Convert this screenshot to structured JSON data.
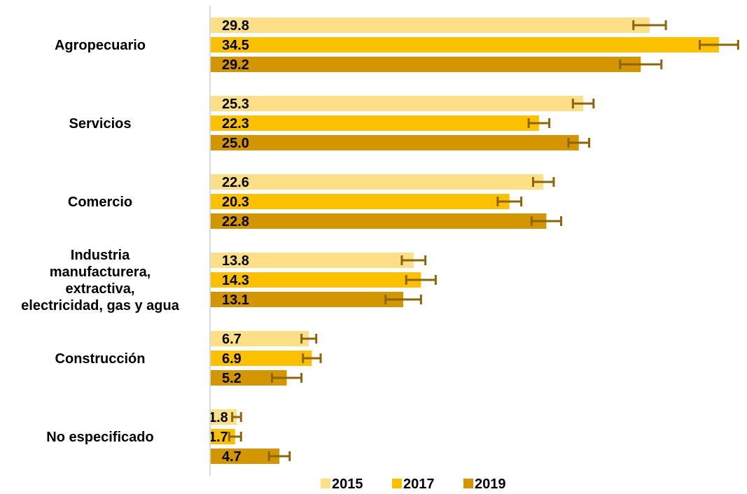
{
  "chart_data": {
    "type": "bar",
    "orientation": "horizontal",
    "categories": [
      "Agropecuario",
      "Servicios",
      "Comercio",
      "Industria manufacturera, extractiva, electricidad, gas y agua",
      "Construcción",
      "No especificado"
    ],
    "category_lines": [
      [
        "Agropecuario"
      ],
      [
        "Servicios"
      ],
      [
        "Comercio"
      ],
      [
        "Industria",
        "manufacturera,",
        "extractiva,",
        "electricidad, gas y agua"
      ],
      [
        "Construcción"
      ],
      [
        "No especificado"
      ]
    ],
    "series": [
      {
        "name": "2015",
        "color": "#FDDF87",
        "values": [
          29.8,
          25.3,
          22.6,
          13.8,
          6.7,
          1.8
        ],
        "error": [
          1.1,
          0.7,
          0.7,
          0.8,
          0.5,
          0.3
        ]
      },
      {
        "name": "2017",
        "color": "#FBC000",
        "values": [
          34.5,
          22.3,
          20.3,
          14.3,
          6.9,
          1.7
        ],
        "error": [
          1.3,
          0.7,
          0.8,
          1.0,
          0.6,
          0.4
        ]
      },
      {
        "name": "2019",
        "color": "#D39500",
        "values": [
          29.2,
          25.0,
          22.8,
          13.1,
          5.2,
          4.7
        ],
        "error": [
          1.4,
          0.7,
          1.0,
          1.2,
          1.0,
          0.7
        ]
      }
    ],
    "error_bar_color": "#8B6508",
    "xlim": [
      0,
      35.5
    ],
    "grid": false,
    "legend": "bottom"
  }
}
